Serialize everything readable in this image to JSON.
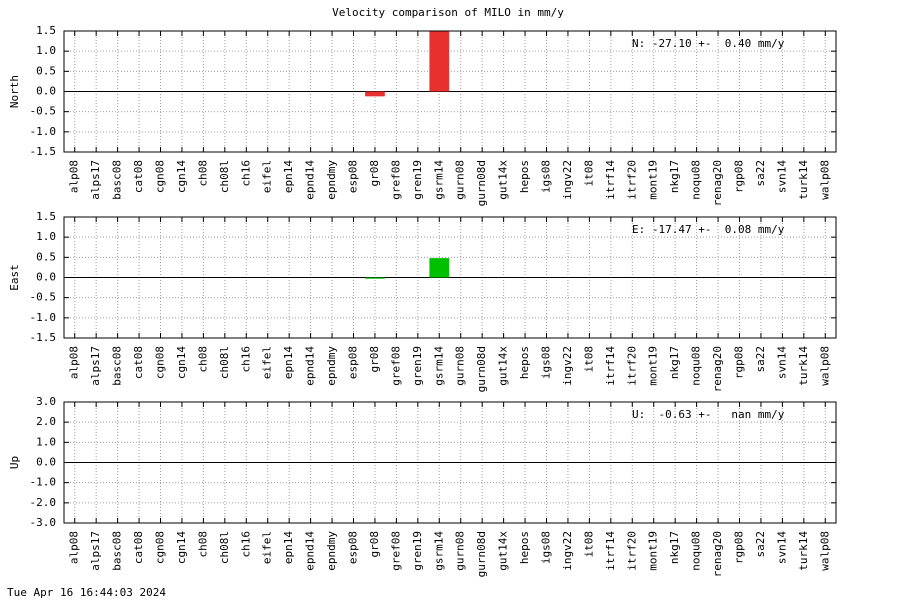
{
  "title": "Velocity comparison of MILO in mm/y",
  "footer": "Tue Apr 16 16:44:03 2024",
  "chart_data": [
    {
      "type": "bar",
      "ylabel": "North",
      "annotation": "N: -27.10 +-  0.40 mm/y",
      "color": "#e8312f",
      "grid": true,
      "categories": [
        "alp08",
        "alps17",
        "basc08",
        "cat08",
        "cgn08",
        "cgn14",
        "ch08",
        "ch08l",
        "ch16",
        "eifel",
        "epn14",
        "epnd14",
        "epndmy",
        "esp08",
        "gr08",
        "gref08",
        "gren19",
        "gsrm14",
        "gurn08",
        "gurn08d",
        "gut14x",
        "hepos",
        "igs08",
        "ingv22",
        "it08",
        "itrf14",
        "itrf20",
        "mont19",
        "nkg17",
        "noqu08",
        "renag20",
        "rgp08",
        "sa22",
        "svn14",
        "turk14",
        "walp08"
      ],
      "values": [
        null,
        null,
        null,
        null,
        null,
        null,
        null,
        null,
        null,
        null,
        null,
        null,
        null,
        null,
        -0.12,
        null,
        null,
        1.5,
        null,
        null,
        null,
        null,
        null,
        null,
        null,
        null,
        null,
        null,
        null,
        null,
        null,
        null,
        null,
        null,
        null,
        null
      ],
      "ylim": [
        -1.5,
        1.5
      ],
      "yticks": [
        -1.5,
        {
          "value": -1,
          "label": "-1.0"
        },
        -0.5,
        {
          "value": 0,
          "label": "0.0"
        },
        0.5,
        {
          "value": 1,
          "label": "1.0"
        },
        1.5
      ]
    },
    {
      "type": "bar",
      "ylabel": "East",
      "annotation": "E: -17.47 +-  0.08 mm/y",
      "color": "#00c000",
      "grid": true,
      "categories": [
        "alp08",
        "alps17",
        "basc08",
        "cat08",
        "cgn08",
        "cgn14",
        "ch08",
        "ch08l",
        "ch16",
        "eifel",
        "epn14",
        "epnd14",
        "epndmy",
        "esp08",
        "gr08",
        "gref08",
        "gren19",
        "gsrm14",
        "gurn08",
        "gurn08d",
        "gut14x",
        "hepos",
        "igs08",
        "ingv22",
        "it08",
        "itrf14",
        "itrf20",
        "mont19",
        "nkg17",
        "noqu08",
        "renag20",
        "rgp08",
        "sa22",
        "svn14",
        "turk14",
        "walp08"
      ],
      "values": [
        null,
        null,
        null,
        null,
        null,
        null,
        null,
        null,
        null,
        null,
        null,
        null,
        null,
        null,
        -0.03,
        null,
        null,
        0.48,
        null,
        null,
        null,
        null,
        null,
        null,
        null,
        null,
        null,
        null,
        null,
        null,
        null,
        null,
        null,
        null,
        null,
        null
      ],
      "ylim": [
        -1.5,
        1.5
      ],
      "yticks": [
        -1.5,
        {
          "value": -1,
          "label": "-1.0"
        },
        -0.5,
        {
          "value": 0,
          "label": "0.0"
        },
        0.5,
        {
          "value": 1,
          "label": "1.0"
        },
        1.5
      ]
    },
    {
      "type": "bar",
      "ylabel": "Up",
      "annotation": "U:  -0.63 +-   nan mm/y",
      "color": "#0000e0",
      "grid": true,
      "categories": [
        "alp08",
        "alps17",
        "basc08",
        "cat08",
        "cgn08",
        "cgn14",
        "ch08",
        "ch08l",
        "ch16",
        "eifel",
        "epn14",
        "epnd14",
        "epndmy",
        "esp08",
        "gr08",
        "gref08",
        "gren19",
        "gsrm14",
        "gurn08",
        "gurn08d",
        "gut14x",
        "hepos",
        "igs08",
        "ingv22",
        "it08",
        "itrf14",
        "itrf20",
        "mont19",
        "nkg17",
        "noqu08",
        "renag20",
        "rgp08",
        "sa22",
        "svn14",
        "turk14",
        "walp08"
      ],
      "values": [
        null,
        null,
        null,
        null,
        null,
        null,
        null,
        null,
        null,
        null,
        null,
        null,
        null,
        null,
        null,
        null,
        null,
        null,
        null,
        null,
        null,
        null,
        null,
        null,
        null,
        null,
        null,
        null,
        null,
        null,
        null,
        null,
        null,
        null,
        null,
        null
      ],
      "ylim": [
        -3,
        3
      ],
      "yticks": [
        {
          "value": -3,
          "label": "-3.0"
        },
        {
          "value": -2,
          "label": "-2.0"
        },
        {
          "value": -1,
          "label": "-1.0"
        },
        {
          "value": 0,
          "label": "0.0"
        },
        {
          "value": 1,
          "label": "1.0"
        },
        {
          "value": 2,
          "label": "2.0"
        },
        {
          "value": 3,
          "label": "3.0"
        }
      ]
    }
  ]
}
